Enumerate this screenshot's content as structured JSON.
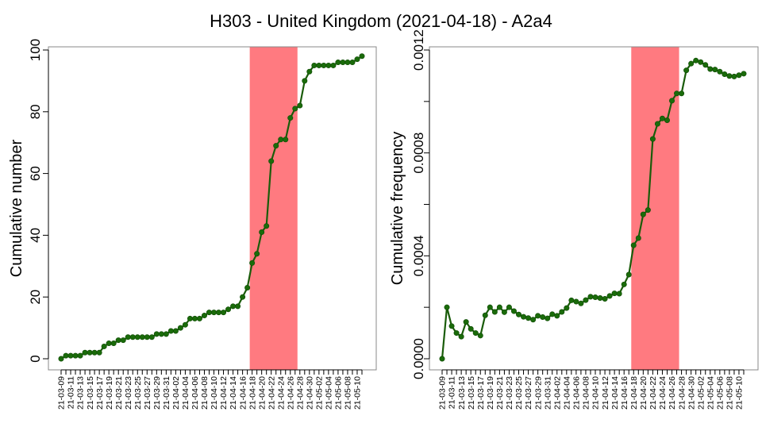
{
  "title": "H303 - United Kingdom (2021-04-18) - A2a4",
  "colors": {
    "line": "#1a5c0a",
    "point": "#1a6b0a",
    "highlight": "#ff7a80",
    "axis": "#000000",
    "box": "#888888"
  },
  "chart_data": [
    {
      "type": "line",
      "ylabel": "Cumulative number",
      "ylim": [
        0,
        100
      ],
      "yticks": [
        "0",
        "20",
        "40",
        "60",
        "80",
        "100"
      ],
      "highlight_range": [
        "21-04-18",
        "21-04-27"
      ],
      "x": [
        "21-03-09",
        "21-03-10",
        "21-03-11",
        "21-03-12",
        "21-03-13",
        "21-03-14",
        "21-03-15",
        "21-03-16",
        "21-03-17",
        "21-03-18",
        "21-03-19",
        "21-03-20",
        "21-03-21",
        "21-03-22",
        "21-03-23",
        "21-03-24",
        "21-03-25",
        "21-03-26",
        "21-03-27",
        "21-03-28",
        "21-03-29",
        "21-03-30",
        "21-03-31",
        "21-04-01",
        "21-04-02",
        "21-04-03",
        "21-04-04",
        "21-04-05",
        "21-04-06",
        "21-04-07",
        "21-04-08",
        "21-04-09",
        "21-04-10",
        "21-04-11",
        "21-04-12",
        "21-04-13",
        "21-04-14",
        "21-04-15",
        "21-04-16",
        "21-04-17",
        "21-04-18",
        "21-04-19",
        "21-04-20",
        "21-04-21",
        "21-04-22",
        "21-04-23",
        "21-04-24",
        "21-04-25",
        "21-04-26",
        "21-04-27",
        "21-04-28",
        "21-04-29",
        "21-04-30",
        "21-05-01",
        "21-05-02",
        "21-05-03",
        "21-05-04",
        "21-05-05",
        "21-05-06",
        "21-05-07",
        "21-05-08",
        "21-05-09",
        "21-05-10",
        "21-05-11"
      ],
      "xtick_labels": [
        "21-03-09",
        "21-03-11",
        "21-03-13",
        "21-03-15",
        "21-03-17",
        "21-03-19",
        "21-03-21",
        "21-03-23",
        "21-03-25",
        "21-03-27",
        "21-03-29",
        "21-03-31",
        "21-04-02",
        "21-04-04",
        "21-04-06",
        "21-04-08",
        "21-04-10",
        "21-04-12",
        "21-04-14",
        "21-04-16",
        "21-04-18",
        "21-04-20",
        "21-04-22",
        "21-04-24",
        "21-04-26",
        "21-04-28",
        "21-04-30",
        "21-05-02",
        "21-05-04",
        "21-05-06",
        "21-05-08",
        "21-05-10"
      ],
      "values": [
        0,
        1,
        1,
        1,
        1,
        2,
        2,
        2,
        2,
        4,
        5,
        5,
        6,
        6,
        7,
        7,
        7,
        7,
        7,
        7,
        8,
        8,
        8,
        9,
        9,
        10,
        11,
        13,
        13,
        13,
        14,
        15,
        15,
        15,
        15,
        16,
        17,
        17,
        20,
        23,
        31,
        34,
        41,
        43,
        64,
        69,
        71,
        71,
        78,
        81,
        82,
        90,
        93,
        95,
        95,
        95,
        95,
        95,
        96,
        96,
        96,
        96,
        97,
        98
      ]
    },
    {
      "type": "line",
      "ylabel": "Cumulative frequency",
      "ylim": [
        0,
        0.0012
      ],
      "yticks": [
        "0.0000",
        "0.0004",
        "0.0008",
        "0.0012"
      ],
      "highlight_range": [
        "21-04-18",
        "21-04-27"
      ],
      "x": [
        "21-03-09",
        "21-03-10",
        "21-03-11",
        "21-03-12",
        "21-03-13",
        "21-03-14",
        "21-03-15",
        "21-03-16",
        "21-03-17",
        "21-03-18",
        "21-03-19",
        "21-03-20",
        "21-03-21",
        "21-03-22",
        "21-03-23",
        "21-03-24",
        "21-03-25",
        "21-03-26",
        "21-03-27",
        "21-03-28",
        "21-03-29",
        "21-03-30",
        "21-03-31",
        "21-04-01",
        "21-04-02",
        "21-04-03",
        "21-04-04",
        "21-04-05",
        "21-04-06",
        "21-04-07",
        "21-04-08",
        "21-04-09",
        "21-04-10",
        "21-04-11",
        "21-04-12",
        "21-04-13",
        "21-04-14",
        "21-04-15",
        "21-04-16",
        "21-04-17",
        "21-04-18",
        "21-04-19",
        "21-04-20",
        "21-04-21",
        "21-04-22",
        "21-04-23",
        "21-04-24",
        "21-04-25",
        "21-04-26",
        "21-04-27",
        "21-04-28",
        "21-04-29",
        "21-04-30",
        "21-05-01",
        "21-05-02",
        "21-05-03",
        "21-05-04",
        "21-05-05",
        "21-05-06",
        "21-05-07",
        "21-05-08",
        "21-05-09",
        "21-05-10",
        "21-05-11"
      ],
      "xtick_labels": [
        "21-03-09",
        "21-03-11",
        "21-03-13",
        "21-03-15",
        "21-03-17",
        "21-03-19",
        "21-03-21",
        "21-03-23",
        "21-03-25",
        "21-03-27",
        "21-03-29",
        "21-03-31",
        "21-04-02",
        "21-04-04",
        "21-04-06",
        "21-04-08",
        "21-04-10",
        "21-04-12",
        "21-04-14",
        "21-04-16",
        "21-04-18",
        "21-04-20",
        "21-04-22",
        "21-04-24",
        "21-04-26",
        "21-04-28",
        "21-04-30",
        "21-05-02",
        "21-05-04",
        "21-05-06",
        "21-05-08",
        "21-05-10"
      ],
      "values": [
        0.0,
        0.0002,
        0.000127,
        0.0001,
        8.6e-05,
        0.000143,
        0.000116,
        0.0001,
        9e-05,
        0.000169,
        0.0002,
        0.000182,
        0.0002,
        0.000181,
        0.0002,
        0.000185,
        0.000172,
        0.000163,
        0.000158,
        0.000152,
        0.000167,
        0.000162,
        0.000157,
        0.000173,
        0.000167,
        0.000182,
        0.000197,
        0.000227,
        0.000222,
        0.000215,
        0.000228,
        0.000241,
        0.000239,
        0.000236,
        0.000233,
        0.000244,
        0.000254,
        0.000253,
        0.000289,
        0.000327,
        0.000441,
        0.000469,
        0.000561,
        0.000578,
        0.000854,
        0.000913,
        0.000934,
        0.000927,
        0.001003,
        0.001031,
        0.001031,
        0.001121,
        0.001147,
        0.001159,
        0.001153,
        0.001142,
        0.001126,
        0.001124,
        0.001116,
        0.001106,
        0.001099,
        0.001097,
        0.001102,
        0.001108
      ]
    }
  ]
}
